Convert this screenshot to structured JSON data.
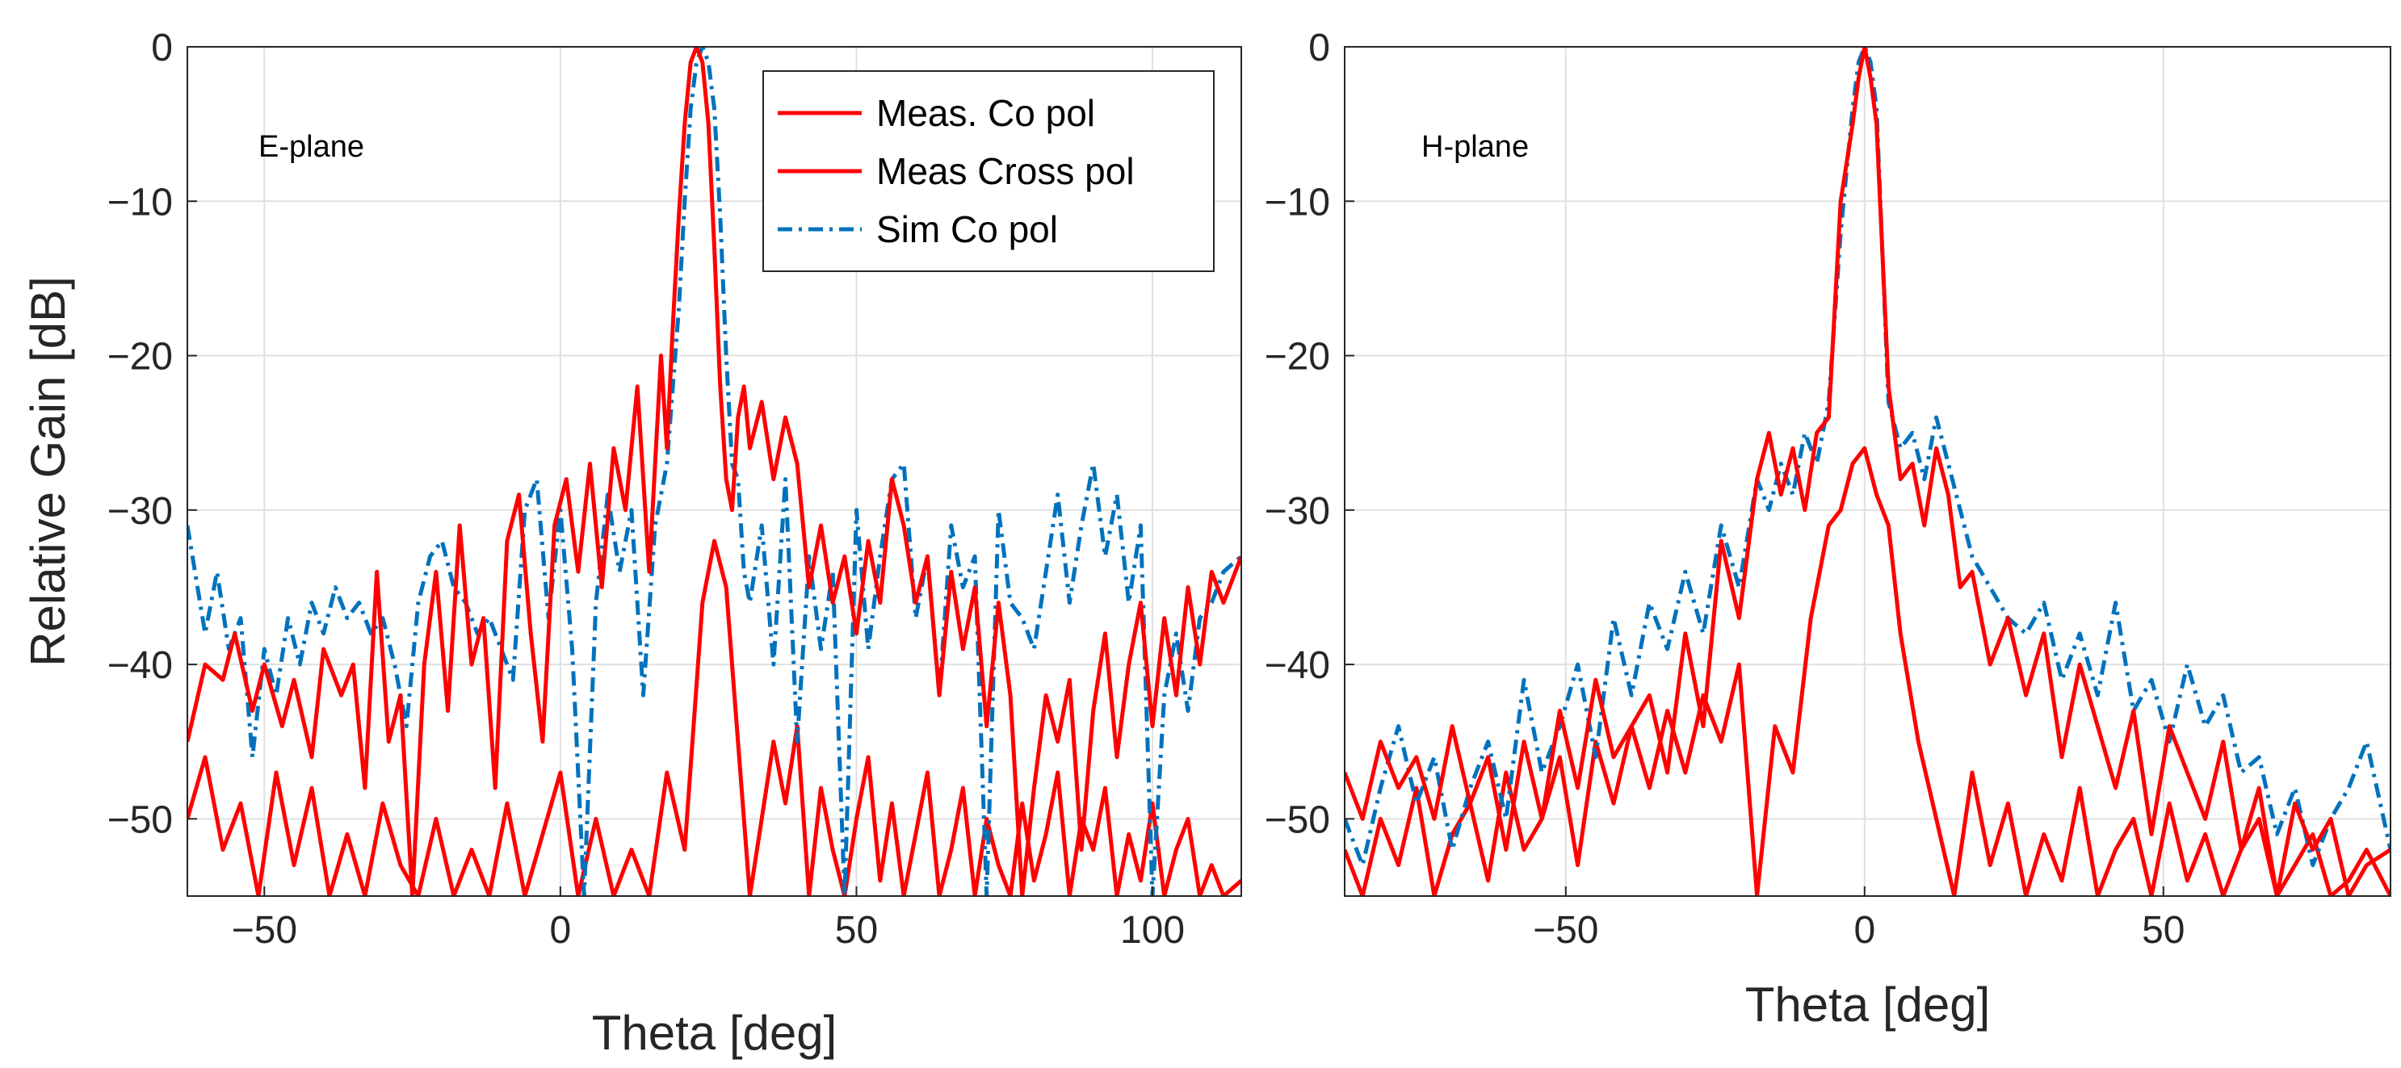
{
  "chart_data": [
    {
      "type": "line",
      "annotation": "E-plane",
      "xlabel": "Theta [deg]",
      "ylabel": "Relative Gain [dB]",
      "xlim": [
        -63,
        115
      ],
      "ylim": [
        -55,
        0
      ],
      "xticks": [
        -50,
        0,
        50,
        100
      ],
      "yticks": [
        0,
        -10,
        -20,
        -30,
        -40,
        -50
      ],
      "xtick_labels": [
        "−50",
        "0",
        "50",
        "100"
      ],
      "ytick_labels": [
        "0",
        "−10",
        "−20",
        "−30",
        "−40",
        "−50"
      ],
      "grid": true,
      "legend": {
        "placement": "top-right",
        "entries": [
          "Meas. Co pol",
          "Meas Cross pol",
          "Sim Co pol"
        ]
      },
      "series": [
        {
          "name": "Meas. Co pol",
          "color": "#ff0000",
          "style": "solid",
          "x": [
            -63,
            -60,
            -57,
            -55,
            -52,
            -50,
            -47,
            -45,
            -42,
            -40,
            -37,
            -35,
            -33,
            -31,
            -29,
            -27,
            -25,
            -23,
            -21,
            -19,
            -17,
            -15,
            -13,
            -11,
            -9,
            -7,
            -5,
            -3,
            -1,
            1,
            3,
            5,
            7,
            9,
            11,
            13,
            15,
            17,
            18,
            19,
            20,
            21,
            22,
            23,
            24,
            25,
            26,
            27,
            28,
            29,
            30,
            31,
            32,
            34,
            36,
            38,
            40,
            42,
            44,
            46,
            48,
            50,
            52,
            54,
            56,
            58,
            60,
            62,
            64,
            66,
            68,
            70,
            72,
            74,
            76,
            78,
            80,
            82,
            84,
            86,
            88,
            90,
            92,
            94,
            96,
            98,
            100,
            102,
            104,
            106,
            108,
            110,
            112,
            115
          ],
          "y": [
            -45,
            -40,
            -41,
            -38,
            -43,
            -40,
            -44,
            -41,
            -46,
            -39,
            -42,
            -40,
            -48,
            -34,
            -45,
            -42,
            -55,
            -40,
            -34,
            -43,
            -31,
            -40,
            -37,
            -48,
            -32,
            -29,
            -38,
            -45,
            -31,
            -28,
            -34,
            -27,
            -35,
            -26,
            -30,
            -22,
            -34,
            -20,
            -26,
            -18,
            -11,
            -5,
            -1,
            0,
            -1,
            -5,
            -13,
            -22,
            -28,
            -30,
            -24,
            -22,
            -26,
            -23,
            -28,
            -24,
            -27,
            -35,
            -31,
            -36,
            -33,
            -38,
            -32,
            -36,
            -28,
            -31,
            -36,
            -33,
            -42,
            -34,
            -39,
            -35,
            -44,
            -36,
            -42,
            -55,
            -48,
            -42,
            -45,
            -41,
            -52,
            -43,
            -38,
            -46,
            -40,
            -36,
            -44,
            -37,
            -42,
            -35,
            -40,
            -34,
            -36,
            -33
          ],
          "values_note": "approximate, read off gridlines"
        },
        {
          "name": "Meas Cross pol",
          "color": "#ff0000",
          "style": "solid",
          "x": [
            -63,
            -60,
            -57,
            -54,
            -51,
            -48,
            -45,
            -42,
            -39,
            -36,
            -33,
            -30,
            -27,
            -24,
            -21,
            -18,
            -15,
            -12,
            -9,
            -6,
            -3,
            0,
            3,
            6,
            9,
            12,
            15,
            18,
            21,
            24,
            26,
            28,
            30,
            32,
            34,
            36,
            38,
            40,
            42,
            44,
            46,
            48,
            50,
            52,
            54,
            56,
            58,
            60,
            62,
            64,
            66,
            68,
            70,
            72,
            74,
            76,
            78,
            80,
            82,
            84,
            86,
            88,
            90,
            92,
            94,
            96,
            98,
            100,
            102,
            104,
            106,
            108,
            110,
            112,
            115
          ],
          "y": [
            -50,
            -46,
            -52,
            -49,
            -55,
            -47,
            -53,
            -48,
            -55,
            -51,
            -55,
            -49,
            -53,
            -55,
            -50,
            -55,
            -52,
            -55,
            -49,
            -55,
            -51,
            -47,
            -55,
            -50,
            -55,
            -52,
            -55,
            -47,
            -52,
            -36,
            -32,
            -35,
            -45,
            -55,
            -50,
            -45,
            -49,
            -44,
            -55,
            -48,
            -52,
            -55,
            -50,
            -46,
            -54,
            -49,
            -55,
            -51,
            -47,
            -55,
            -52,
            -48,
            -55,
            -50,
            -53,
            -55,
            -49,
            -54,
            -51,
            -47,
            -55,
            -50,
            -52,
            -48,
            -55,
            -51,
            -54,
            -49,
            -55,
            -52,
            -50,
            -55,
            -53,
            -55,
            -54
          ],
          "values_note": "approximate, read off gridlines"
        },
        {
          "name": "Sim Co pol",
          "color": "#0072bd",
          "style": "dashdot",
          "x": [
            -63,
            -60,
            -58,
            -56,
            -54,
            -52,
            -50,
            -48,
            -46,
            -44,
            -42,
            -40,
            -38,
            -36,
            -34,
            -32,
            -30,
            -28,
            -26,
            -24,
            -22,
            -20,
            -18,
            -16,
            -14,
            -12,
            -10,
            -8,
            -6,
            -4,
            -2,
            0,
            2,
            4,
            6,
            8,
            10,
            12,
            14,
            16,
            18,
            20,
            21,
            22,
            23,
            24,
            25,
            26,
            27,
            28,
            29,
            30,
            31,
            32,
            34,
            36,
            38,
            40,
            42,
            44,
            46,
            48,
            50,
            52,
            54,
            56,
            58,
            60,
            62,
            64,
            66,
            68,
            70,
            72,
            74,
            76,
            78,
            80,
            82,
            84,
            86,
            88,
            90,
            92,
            94,
            96,
            98,
            100,
            102,
            104,
            106,
            108,
            110,
            112,
            115
          ],
          "y": [
            -31,
            -38,
            -34,
            -39,
            -37,
            -46,
            -39,
            -42,
            -37,
            -40,
            -36,
            -38,
            -35,
            -37,
            -36,
            -38,
            -37,
            -40,
            -44,
            -36,
            -33,
            -32,
            -35,
            -36,
            -38,
            -37,
            -39,
            -41,
            -30,
            -28,
            -37,
            -30,
            -39,
            -55,
            -36,
            -29,
            -34,
            -30,
            -42,
            -31,
            -27,
            -17,
            -10,
            -4,
            -1,
            0,
            -1,
            -4,
            -11,
            -20,
            -27,
            -28,
            -34,
            -36,
            -31,
            -40,
            -28,
            -45,
            -33,
            -39,
            -34,
            -55,
            -30,
            -39,
            -33,
            -28,
            -27,
            -37,
            -33,
            -42,
            -31,
            -35,
            -33,
            -55,
            -30,
            -36,
            -37,
            -39,
            -34,
            -29,
            -36,
            -31,
            -27,
            -33,
            -29,
            -36,
            -31,
            -55,
            -42,
            -38,
            -43,
            -37,
            -36,
            -34,
            -33
          ],
          "values_note": "approximate, read off gridlines"
        }
      ]
    },
    {
      "type": "line",
      "annotation": "H-plane",
      "xlabel": "Theta [deg]",
      "ylabel": "",
      "xlim": [
        -87,
        88
      ],
      "ylim": [
        -55,
        0
      ],
      "xticks": [
        -50,
        0,
        50
      ],
      "yticks": [
        0,
        -10,
        -20,
        -30,
        -40,
        -50
      ],
      "xtick_labels": [
        "−50",
        "0",
        "50"
      ],
      "ytick_labels": [
        "0",
        "−10",
        "−20",
        "−30",
        "−40",
        "−50"
      ],
      "grid": true,
      "series": [
        {
          "name": "Meas. Co pol",
          "color": "#ff0000",
          "style": "solid",
          "x": [
            -87,
            -84,
            -81,
            -78,
            -75,
            -72,
            -69,
            -66,
            -63,
            -60,
            -57,
            -54,
            -51,
            -48,
            -45,
            -42,
            -39,
            -36,
            -33,
            -30,
            -27,
            -24,
            -21,
            -18,
            -16,
            -14,
            -12,
            -10,
            -8,
            -6,
            -4,
            -2,
            -1,
            0,
            1,
            2,
            4,
            6,
            8,
            10,
            12,
            14,
            16,
            18,
            21,
            24,
            27,
            30,
            33,
            36,
            39,
            42,
            45,
            48,
            51,
            54,
            57,
            60,
            63,
            66,
            69,
            72,
            75,
            78,
            81,
            84,
            88
          ],
          "y": [
            -47,
            -50,
            -45,
            -48,
            -46,
            -50,
            -44,
            -49,
            -46,
            -52,
            -45,
            -50,
            -43,
            -48,
            -41,
            -46,
            -44,
            -42,
            -47,
            -38,
            -44,
            -32,
            -37,
            -28,
            -25,
            -29,
            -26,
            -30,
            -25,
            -24,
            -10,
            -5,
            -2,
            0,
            -2,
            -5,
            -22,
            -28,
            -27,
            -31,
            -26,
            -29,
            -35,
            -34,
            -40,
            -37,
            -42,
            -38,
            -46,
            -40,
            -44,
            -48,
            -43,
            -51,
            -44,
            -47,
            -50,
            -45,
            -52,
            -48,
            -55,
            -49,
            -52,
            -50,
            -55,
            -53,
            -52
          ],
          "values_note": "approximate, read off gridlines"
        },
        {
          "name": "Meas Cross pol",
          "color": "#ff0000",
          "style": "solid",
          "x": [
            -87,
            -84,
            -81,
            -78,
            -75,
            -72,
            -69,
            -66,
            -63,
            -60,
            -57,
            -54,
            -51,
            -48,
            -45,
            -42,
            -39,
            -36,
            -33,
            -30,
            -27,
            -24,
            -21,
            -18,
            -15,
            -12,
            -9,
            -6,
            -4,
            -2,
            0,
            2,
            4,
            6,
            9,
            12,
            15,
            18,
            21,
            24,
            27,
            30,
            33,
            36,
            39,
            42,
            45,
            48,
            51,
            54,
            57,
            60,
            63,
            66,
            69,
            72,
            75,
            78,
            81,
            84,
            88
          ],
          "y": [
            -52,
            -55,
            -50,
            -53,
            -48,
            -55,
            -51,
            -49,
            -54,
            -47,
            -52,
            -50,
            -46,
            -53,
            -45,
            -49,
            -44,
            -48,
            -43,
            -47,
            -42,
            -45,
            -40,
            -55,
            -44,
            -47,
            -37,
            -31,
            -30,
            -27,
            -26,
            -29,
            -31,
            -38,
            -45,
            -50,
            -55,
            -47,
            -53,
            -49,
            -55,
            -51,
            -54,
            -48,
            -55,
            -52,
            -50,
            -55,
            -49,
            -54,
            -51,
            -55,
            -52,
            -50,
            -55,
            -53,
            -51,
            -55,
            -54,
            -52,
            -55
          ],
          "values_note": "approximate, read off gridlines"
        },
        {
          "name": "Sim Co pol",
          "color": "#0072bd",
          "style": "dashdot",
          "x": [
            -87,
            -84,
            -81,
            -78,
            -75,
            -72,
            -69,
            -66,
            -63,
            -60,
            -57,
            -54,
            -51,
            -48,
            -45,
            -42,
            -39,
            -36,
            -33,
            -30,
            -27,
            -24,
            -21,
            -18,
            -16,
            -14,
            -12,
            -10,
            -8,
            -6,
            -4,
            -2,
            -1,
            0,
            1,
            2,
            4,
            6,
            8,
            10,
            12,
            14,
            16,
            18,
            21,
            24,
            27,
            30,
            33,
            36,
            39,
            42,
            45,
            48,
            51,
            54,
            57,
            60,
            63,
            66,
            69,
            72,
            75,
            78,
            81,
            84,
            88
          ],
          "y": [
            -50,
            -53,
            -48,
            -44,
            -49,
            -46,
            -52,
            -48,
            -45,
            -50,
            -41,
            -47,
            -44,
            -40,
            -46,
            -37,
            -42,
            -36,
            -39,
            -34,
            -38,
            -31,
            -35,
            -28,
            -30,
            -27,
            -29,
            -25,
            -27,
            -23,
            -12,
            -4,
            -1,
            0,
            -1,
            -4,
            -23,
            -26,
            -25,
            -28,
            -24,
            -27,
            -30,
            -33,
            -35,
            -37,
            -38,
            -36,
            -41,
            -38,
            -42,
            -36,
            -43,
            -41,
            -45,
            -40,
            -44,
            -42,
            -47,
            -46,
            -51,
            -48,
            -53,
            -50,
            -48,
            -45,
            -52
          ],
          "values_note": "approximate, read off gridlines"
        }
      ]
    }
  ]
}
